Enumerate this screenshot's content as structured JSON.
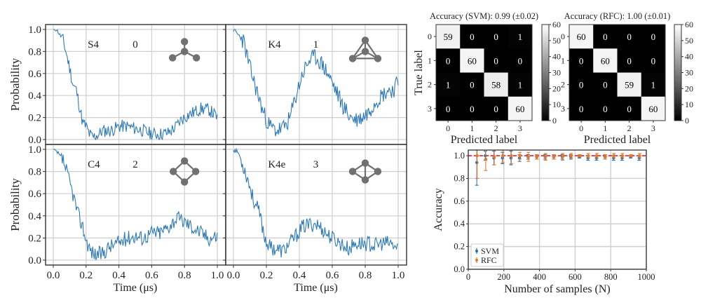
{
  "chart_data": [
    {
      "type": "line",
      "panel": "top-left",
      "graph_name": "S4",
      "class_label": "0",
      "graph_icon": "star-graph-icon",
      "xlabel": "",
      "ylabel": "Probability",
      "xlim": [
        0.0,
        1.0
      ],
      "ylim": [
        0.0,
        1.0
      ],
      "xticks": [
        "0.0",
        "0.2",
        "0.4",
        "0.6",
        "0.8",
        "1.0"
      ],
      "yticks": [
        "0.0",
        "0.2",
        "0.4",
        "0.6",
        "0.8",
        "1.0"
      ],
      "grid": true,
      "color": "#2f7ab5",
      "keypoints": [
        [
          0.0,
          1.0
        ],
        [
          0.02,
          1.0
        ],
        [
          0.04,
          0.95
        ],
        [
          0.06,
          0.9
        ],
        [
          0.08,
          0.78
        ],
        [
          0.1,
          0.65
        ],
        [
          0.12,
          0.5
        ],
        [
          0.14,
          0.45
        ],
        [
          0.16,
          0.3
        ],
        [
          0.18,
          0.15
        ],
        [
          0.2,
          0.12
        ],
        [
          0.22,
          0.05
        ],
        [
          0.24,
          0.02
        ],
        [
          0.28,
          0.05
        ],
        [
          0.3,
          0.08
        ],
        [
          0.35,
          0.08
        ],
        [
          0.4,
          0.12
        ],
        [
          0.45,
          0.12
        ],
        [
          0.5,
          0.1
        ],
        [
          0.55,
          0.08
        ],
        [
          0.6,
          0.05
        ],
        [
          0.65,
          0.05
        ],
        [
          0.7,
          0.06
        ],
        [
          0.75,
          0.12
        ],
        [
          0.78,
          0.18
        ],
        [
          0.82,
          0.22
        ],
        [
          0.86,
          0.25
        ],
        [
          0.9,
          0.28
        ],
        [
          0.95,
          0.27
        ],
        [
          1.0,
          0.2
        ]
      ],
      "noise": 0.06,
      "seed": 11
    },
    {
      "type": "line",
      "panel": "top-right",
      "graph_name": "K4",
      "class_label": "1",
      "graph_icon": "complete-graph-icon",
      "xlabel": "",
      "ylabel": "",
      "xlim": [
        0.0,
        1.0
      ],
      "ylim": [
        0.0,
        1.0
      ],
      "xticks": [
        "0.0",
        "0.2",
        "0.4",
        "0.6",
        "0.8",
        "1.0"
      ],
      "yticks": [
        "0.0",
        "0.2",
        "0.4",
        "0.6",
        "0.8",
        "1.0"
      ],
      "grid": true,
      "color": "#2f7ab5",
      "keypoints": [
        [
          0.0,
          1.0
        ],
        [
          0.03,
          0.95
        ],
        [
          0.06,
          0.9
        ],
        [
          0.1,
          0.65
        ],
        [
          0.14,
          0.45
        ],
        [
          0.18,
          0.25
        ],
        [
          0.22,
          0.12
        ],
        [
          0.26,
          0.08
        ],
        [
          0.3,
          0.1
        ],
        [
          0.34,
          0.18
        ],
        [
          0.38,
          0.4
        ],
        [
          0.42,
          0.6
        ],
        [
          0.46,
          0.72
        ],
        [
          0.5,
          0.75
        ],
        [
          0.54,
          0.68
        ],
        [
          0.58,
          0.58
        ],
        [
          0.62,
          0.45
        ],
        [
          0.66,
          0.32
        ],
        [
          0.7,
          0.22
        ],
        [
          0.74,
          0.18
        ],
        [
          0.78,
          0.2
        ],
        [
          0.82,
          0.25
        ],
        [
          0.86,
          0.35
        ],
        [
          0.9,
          0.4
        ],
        [
          0.94,
          0.45
        ],
        [
          0.97,
          0.45
        ],
        [
          1.0,
          0.52
        ]
      ],
      "noise": 0.08,
      "seed": 23
    },
    {
      "type": "line",
      "panel": "bottom-left",
      "graph_name": "C4",
      "class_label": "2",
      "graph_icon": "cycle-graph-icon",
      "xlabel": "Time (μs)",
      "ylabel": "Probability",
      "xlim": [
        0.0,
        1.0
      ],
      "ylim": [
        0.0,
        1.0
      ],
      "xticks": [
        "0.0",
        "0.2",
        "0.4",
        "0.6",
        "0.8",
        "1.0"
      ],
      "yticks": [
        "0.0",
        "0.2",
        "0.4",
        "0.6",
        "0.8",
        "1.0"
      ],
      "grid": true,
      "color": "#2f7ab5",
      "keypoints": [
        [
          0.0,
          1.0
        ],
        [
          0.03,
          0.96
        ],
        [
          0.06,
          0.9
        ],
        [
          0.09,
          0.75
        ],
        [
          0.12,
          0.6
        ],
        [
          0.15,
          0.42
        ],
        [
          0.18,
          0.3
        ],
        [
          0.2,
          0.18
        ],
        [
          0.23,
          0.08
        ],
        [
          0.26,
          0.05
        ],
        [
          0.3,
          0.06
        ],
        [
          0.34,
          0.12
        ],
        [
          0.4,
          0.16
        ],
        [
          0.45,
          0.2
        ],
        [
          0.5,
          0.22
        ],
        [
          0.55,
          0.2
        ],
        [
          0.6,
          0.25
        ],
        [
          0.65,
          0.25
        ],
        [
          0.7,
          0.3
        ],
        [
          0.75,
          0.38
        ],
        [
          0.8,
          0.35
        ],
        [
          0.85,
          0.3
        ],
        [
          0.9,
          0.25
        ],
        [
          0.95,
          0.2
        ],
        [
          1.0,
          0.22
        ]
      ],
      "noise": 0.07,
      "seed": 37
    },
    {
      "type": "line",
      "panel": "bottom-right",
      "graph_name": "K4e",
      "class_label": "3",
      "graph_icon": "diamond-graph-icon",
      "xlabel": "Time (μs)",
      "ylabel": "",
      "xlim": [
        0.0,
        1.0
      ],
      "ylim": [
        0.0,
        1.0
      ],
      "xticks": [
        "0.0",
        "0.2",
        "0.4",
        "0.6",
        "0.8",
        "1.0"
      ],
      "yticks": [
        "0.0",
        "0.2",
        "0.4",
        "0.6",
        "0.8",
        "1.0"
      ],
      "grid": true,
      "color": "#2f7ab5",
      "keypoints": [
        [
          0.0,
          1.0
        ],
        [
          0.03,
          0.97
        ],
        [
          0.06,
          0.85
        ],
        [
          0.09,
          0.72
        ],
        [
          0.12,
          0.55
        ],
        [
          0.15,
          0.45
        ],
        [
          0.17,
          0.35
        ],
        [
          0.19,
          0.2
        ],
        [
          0.22,
          0.12
        ],
        [
          0.26,
          0.1
        ],
        [
          0.3,
          0.08
        ],
        [
          0.34,
          0.15
        ],
        [
          0.38,
          0.22
        ],
        [
          0.42,
          0.3
        ],
        [
          0.46,
          0.32
        ],
        [
          0.5,
          0.33
        ],
        [
          0.54,
          0.28
        ],
        [
          0.58,
          0.22
        ],
        [
          0.62,
          0.18
        ],
        [
          0.66,
          0.14
        ],
        [
          0.7,
          0.1
        ],
        [
          0.74,
          0.15
        ],
        [
          0.78,
          0.15
        ],
        [
          0.82,
          0.15
        ],
        [
          0.86,
          0.13
        ],
        [
          0.9,
          0.15
        ],
        [
          0.95,
          0.15
        ],
        [
          1.0,
          0.1
        ]
      ],
      "noise": 0.07,
      "seed": 53
    },
    {
      "type": "heatmap",
      "panel": "confusion-svm",
      "title": "Accuracy (SVM): 0.99 (±0.02)",
      "xlabel": "Predicted label",
      "ylabel": "True label",
      "xticks": [
        "0",
        "1",
        "2",
        "3"
      ],
      "yticks": [
        "0",
        "1",
        "2",
        "3"
      ],
      "matrix": [
        [
          59,
          0,
          0,
          1
        ],
        [
          0,
          60,
          0,
          0
        ],
        [
          1,
          0,
          58,
          1
        ],
        [
          0,
          0,
          0,
          60
        ]
      ],
      "colorbar": {
        "min": 0,
        "max": 60,
        "ticks": [
          "0",
          "10",
          "20",
          "30",
          "40",
          "50",
          "60"
        ],
        "colormap": "gray"
      }
    },
    {
      "type": "heatmap",
      "panel": "confusion-rfc",
      "title": "Accuracy (RFC): 1.00 (±0.01)",
      "xlabel": "Predicted label",
      "ylabel": "",
      "xticks": [
        "0",
        "1",
        "2",
        "3"
      ],
      "yticks": [
        "0",
        "1",
        "2",
        "3"
      ],
      "matrix": [
        [
          60,
          0,
          0,
          0
        ],
        [
          0,
          60,
          0,
          0
        ],
        [
          0,
          0,
          59,
          1
        ],
        [
          0,
          0,
          0,
          60
        ]
      ],
      "colorbar": {
        "min": 0,
        "max": 60,
        "ticks": [
          "0",
          "10",
          "20",
          "30",
          "40",
          "50",
          "60"
        ],
        "colormap": "gray"
      }
    },
    {
      "type": "scatter",
      "panel": "accuracy-vs-samples",
      "xlabel": "Number of samples (N)",
      "ylabel": "Accuracy",
      "xlim": [
        0,
        1000
      ],
      "ylim": [
        0.0,
        1.05
      ],
      "xticks": [
        "0",
        "200",
        "400",
        "600",
        "800",
        "1000"
      ],
      "yticks": [
        "0.0",
        "0.2",
        "0.4",
        "0.6",
        "0.8",
        "1.0"
      ],
      "grid": true,
      "reference_line": {
        "y": 1.0,
        "color": "#e8212b",
        "style": "dashed"
      },
      "legend": {
        "position": "bottom-left",
        "entries": [
          "SVM",
          "RFC"
        ]
      },
      "series": [
        {
          "name": "SVM",
          "color": "#2a6ea6",
          "x": [
            48,
            96,
            144,
            192,
            240,
            288,
            336,
            384,
            432,
            480,
            528,
            576,
            624,
            672,
            720,
            768,
            816,
            864,
            912,
            960
          ],
          "y": [
            0.94,
            1.0,
            0.98,
            0.98,
            0.98,
            0.98,
            0.99,
            0.99,
            0.99,
            0.99,
            0.99,
            0.99,
            0.99,
            0.98,
            0.98,
            0.99,
            0.98,
            0.98,
            0.99,
            0.98
          ],
          "err": [
            0.2,
            0.04,
            0.06,
            0.05,
            0.06,
            0.03,
            0.02,
            0.02,
            0.02,
            0.02,
            0.02,
            0.02,
            0.01,
            0.02,
            0.02,
            0.02,
            0.02,
            0.02,
            0.01,
            0.02
          ]
        },
        {
          "name": "RFC",
          "color": "#e07a30",
          "x": [
            48,
            96,
            144,
            192,
            240,
            288,
            336,
            384,
            432,
            480,
            528,
            576,
            624,
            672,
            720,
            768,
            816,
            864,
            912,
            960
          ],
          "y": [
            1.0,
            0.97,
            0.99,
            1.0,
            1.0,
            1.0,
            0.99,
            0.99,
            0.99,
            0.99,
            0.99,
            1.0,
            1.0,
            1.0,
            1.0,
            0.99,
            1.0,
            1.0,
            1.0,
            1.0
          ],
          "err": [
            0.2,
            0.1,
            0.07,
            0.06,
            0.07,
            0.03,
            0.04,
            0.02,
            0.03,
            0.02,
            0.03,
            0.02,
            0.01,
            0.02,
            0.02,
            0.02,
            0.02,
            0.02,
            0.01,
            0.02
          ]
        }
      ]
    }
  ]
}
